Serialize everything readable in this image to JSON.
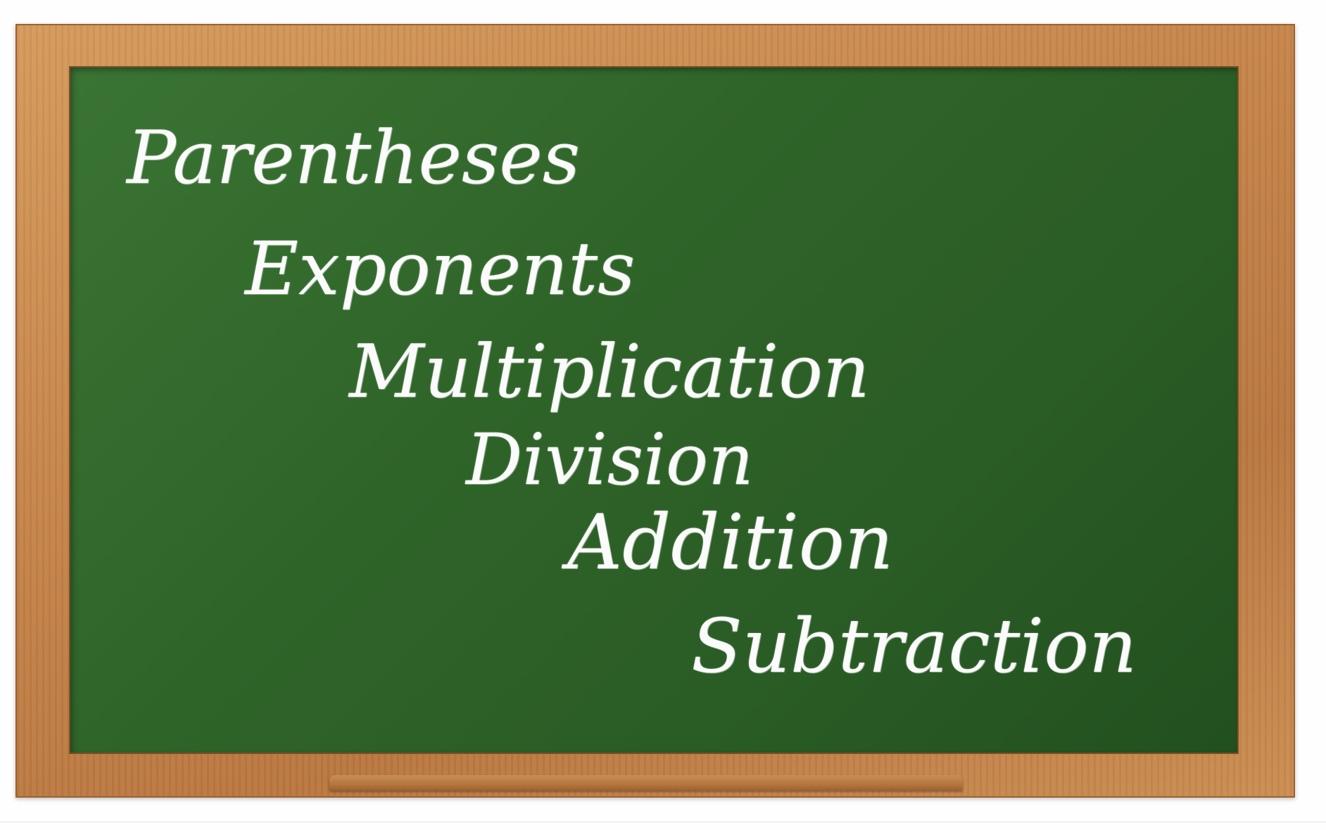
{
  "colors": {
    "board": "#2f6429",
    "frame": "#c4834a",
    "chalk": "#fbfbfb"
  },
  "words": {
    "parentheses": "Parentheses",
    "exponents": "Exponents",
    "multiplication": "Multiplication",
    "division": "Division",
    "addition": "Addition",
    "subtraction": "Subtraction"
  }
}
